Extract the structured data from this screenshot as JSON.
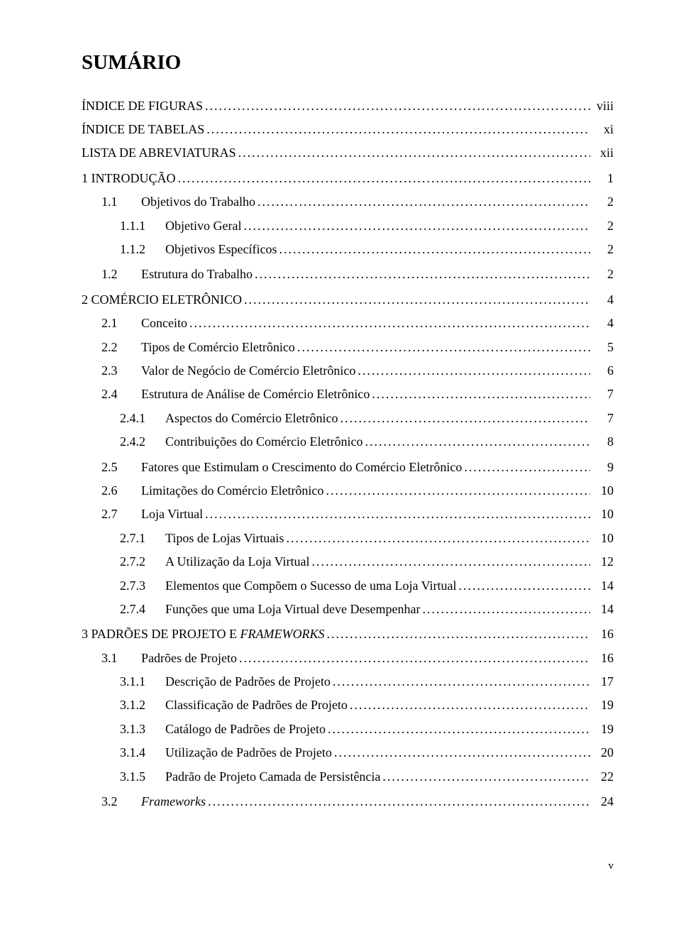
{
  "title": "SUMÁRIO",
  "page_footer": "v",
  "style": {
    "background_color": "#ffffff",
    "text_color": "#000000",
    "font_family": "Times New Roman",
    "title_fontsize": 29,
    "body_fontsize": 18,
    "leader_char": "."
  },
  "entries": [
    {
      "type": "front",
      "label": "ÍNDICE DE FIGURAS",
      "page": "viii"
    },
    {
      "type": "front",
      "label": "ÍNDICE DE TABELAS",
      "page": "xi"
    },
    {
      "type": "front",
      "label": "LISTA DE ABREVIATURAS",
      "page": "xii"
    },
    {
      "type": "chap",
      "label": "1 INTRODUÇÃO",
      "page": "1",
      "gap": true
    },
    {
      "type": "lvl1",
      "num": "1.1",
      "label": "Objetivos do Trabalho",
      "page": "2"
    },
    {
      "type": "lvl2",
      "num": "1.1.1",
      "label": "Objetivo Geral",
      "page": "2"
    },
    {
      "type": "lvl2",
      "num": "1.1.2",
      "label": "Objetivos Específicos",
      "page": "2"
    },
    {
      "type": "lvl1",
      "num": "1.2",
      "label": "Estrutura do Trabalho",
      "page": "2",
      "gap": true
    },
    {
      "type": "chap",
      "label": "2 COMÉRCIO ELETRÔNICO",
      "page": "4",
      "gap": true
    },
    {
      "type": "lvl1",
      "num": "2.1",
      "label": "Conceito",
      "page": "4"
    },
    {
      "type": "lvl1",
      "num": "2.2",
      "label": "Tipos de Comércio Eletrônico",
      "page": "5"
    },
    {
      "type": "lvl1",
      "num": "2.3",
      "label": "Valor de Negócio de Comércio Eletrônico",
      "page": "6"
    },
    {
      "type": "lvl1",
      "num": "2.4",
      "label": "Estrutura de Análise de Comércio Eletrônico",
      "page": "7"
    },
    {
      "type": "lvl2",
      "num": "2.4.1",
      "label": "Aspectos do Comércio Eletrônico",
      "page": "7"
    },
    {
      "type": "lvl2",
      "num": "2.4.2",
      "label": "Contribuições do Comércio Eletrônico",
      "page": "8"
    },
    {
      "type": "lvl1",
      "num": "2.5",
      "label": "Fatores que Estimulam o Crescimento do Comércio Eletrônico",
      "page": "9",
      "gap": true
    },
    {
      "type": "lvl1",
      "num": "2.6",
      "label": "Limitações do Comércio Eletrônico",
      "page": "10"
    },
    {
      "type": "lvl1",
      "num": "2.7",
      "label": "Loja Virtual",
      "page": "10"
    },
    {
      "type": "lvl2",
      "num": "2.7.1",
      "label": "Tipos de Lojas Virtuais",
      "page": "10"
    },
    {
      "type": "lvl2",
      "num": "2.7.2",
      "label": "A Utilização da Loja Virtual",
      "page": "12"
    },
    {
      "type": "lvl2",
      "num": "2.7.3",
      "label": "Elementos que Compõem o Sucesso de uma Loja Virtual",
      "page": "14"
    },
    {
      "type": "lvl2",
      "num": "2.7.4",
      "label": "Funções que uma Loja Virtual deve Desempenhar",
      "page": "14"
    },
    {
      "type": "chap",
      "label_parts": [
        {
          "text": "3 PADRÕES DE PROJETO E ",
          "italic": false
        },
        {
          "text": "FRAMEWORKS",
          "italic": true
        }
      ],
      "page": "16",
      "gap": true
    },
    {
      "type": "lvl1",
      "num": "3.1",
      "label": "Padrões de Projeto",
      "page": "16"
    },
    {
      "type": "lvl2",
      "num": "3.1.1",
      "label": "Descrição de Padrões de Projeto",
      "page": "17"
    },
    {
      "type": "lvl2",
      "num": "3.1.2",
      "label": "Classificação de Padrões de Projeto",
      "page": "19"
    },
    {
      "type": "lvl2",
      "num": "3.1.3",
      "label": "Catálogo de Padrões de Projeto",
      "page": "19"
    },
    {
      "type": "lvl2",
      "num": "3.1.4",
      "label": "Utilização de Padrões de Projeto",
      "page": "20"
    },
    {
      "type": "lvl2",
      "num": "3.1.5",
      "label": "Padrão de Projeto Camada de Persistência",
      "page": "22"
    },
    {
      "type": "lvl1",
      "num": "3.2",
      "label": "Frameworks",
      "italic": true,
      "page": "24",
      "gap": true
    }
  ]
}
